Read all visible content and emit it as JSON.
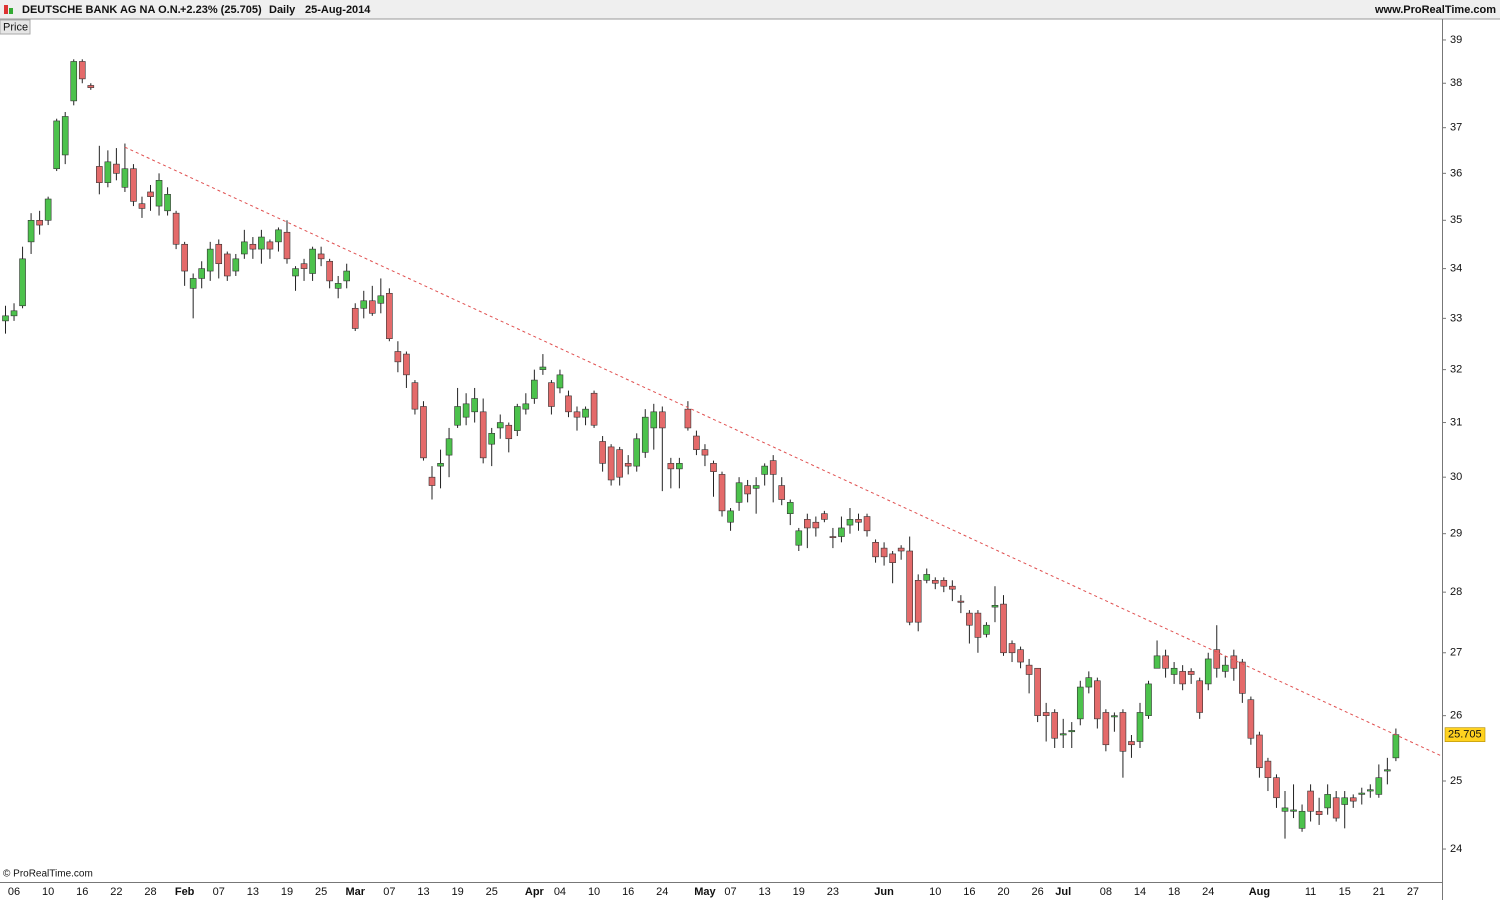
{
  "chart_data": {
    "type": "candlestick",
    "title": "DEUTSCHE BANK AG NA O.N.",
    "change": "+2.23% (25.705)",
    "period": "Daily",
    "date": "25-Aug-2014",
    "source": "www.ProRealTime.com",
    "panel_label": "Price",
    "watermark": "© ProRealTime.com",
    "log_scale": true,
    "grid": false,
    "up_color": "#4cc24c",
    "down_color": "#e46a6a",
    "ylim": [
      23.53,
      39.47
    ],
    "yticks": [
      24,
      25,
      26,
      27,
      28,
      29,
      30,
      31,
      32,
      33,
      34,
      35,
      36,
      37,
      38,
      39
    ],
    "categories": [
      null,
      "06",
      null,
      null,
      null,
      "10",
      null,
      null,
      null,
      "16",
      null,
      null,
      null,
      "22",
      null,
      null,
      null,
      "28",
      null,
      null,
      null,
      "Feb",
      null,
      null,
      null,
      "07",
      null,
      null,
      null,
      "13",
      null,
      null,
      null,
      "19",
      null,
      null,
      null,
      "25",
      null,
      null,
      null,
      "Mar",
      null,
      null,
      null,
      "07",
      null,
      null,
      null,
      "13",
      null,
      null,
      null,
      "19",
      null,
      null,
      null,
      "25",
      null,
      null,
      null,
      null,
      "Apr",
      null,
      null,
      "04",
      null,
      null,
      null,
      "10",
      null,
      null,
      null,
      "16",
      null,
      null,
      null,
      "24",
      null,
      null,
      null,
      null,
      "May",
      null,
      null,
      "07",
      null,
      null,
      null,
      "13",
      null,
      null,
      null,
      "19",
      null,
      null,
      null,
      "23",
      null,
      null,
      null,
      null,
      null,
      "Jun",
      null,
      null,
      null,
      null,
      null,
      "10",
      null,
      null,
      null,
      "16",
      null,
      null,
      null,
      "20",
      null,
      null,
      null,
      "26",
      null,
      null,
      "Jul",
      null,
      null,
      null,
      null,
      "08",
      null,
      null,
      null,
      "14",
      null,
      null,
      null,
      "18",
      null,
      null,
      null,
      "24",
      null,
      null,
      null,
      null,
      null,
      "Aug",
      null,
      null,
      null,
      null,
      null,
      "11",
      null,
      null,
      null,
      "15",
      null,
      null,
      null,
      "21",
      null,
      null,
      null,
      "27"
    ],
    "open": [
      32.95,
      33.05,
      33.25,
      34.55,
      35.0,
      35.0,
      36.1,
      36.4,
      37.6,
      38.5,
      37.95,
      36.15,
      35.8,
      36.2,
      35.7,
      36.1,
      35.35,
      35.6,
      35.3,
      35.2,
      35.15,
      34.5,
      33.6,
      33.8,
      33.95,
      34.5,
      34.3,
      33.95,
      34.3,
      34.5,
      34.4,
      34.55,
      34.55,
      34.75,
      33.85,
      34.1,
      33.9,
      34.3,
      34.15,
      33.6,
      33.75,
      33.2,
      33.2,
      33.35,
      33.3,
      33.5,
      32.35,
      32.3,
      31.75,
      31.3,
      30.0,
      30.2,
      30.4,
      30.95,
      31.1,
      31.2,
      31.2,
      30.6,
      30.9,
      30.95,
      30.85,
      31.25,
      31.45,
      32.0,
      31.75,
      31.65,
      31.5,
      31.2,
      31.1,
      31.55,
      30.65,
      30.55,
      30.5,
      30.25,
      30.2,
      30.45,
      30.9,
      31.2,
      30.25,
      30.15,
      31.25,
      30.75,
      30.5,
      30.25,
      30.05,
      29.2,
      29.55,
      29.85,
      29.8,
      30.05,
      30.3,
      29.85,
      29.35,
      28.8,
      29.25,
      29.2,
      29.35,
      28.95,
      28.95,
      29.15,
      29.25,
      29.3,
      28.85,
      28.75,
      28.65,
      28.75,
      28.7,
      28.2,
      28.2,
      28.2,
      28.2,
      28.1,
      27.85,
      27.65,
      27.65,
      27.3,
      27.75,
      27.8,
      27.15,
      27.05,
      26.8,
      26.75,
      26.05,
      26.05,
      25.7,
      25.75,
      25.95,
      26.45,
      26.55,
      26.05,
      25.98,
      26.05,
      25.6,
      25.6,
      26.0,
      26.75,
      26.95,
      26.65,
      26.7,
      26.7,
      26.55,
      26.5,
      27.05,
      26.7,
      26.95,
      26.85,
      26.25,
      25.7,
      25.3,
      25.05,
      24.55,
      24.55,
      24.3,
      24.85,
      24.55,
      24.6,
      24.75,
      24.65,
      24.75,
      24.8,
      24.85,
      24.8,
      25.15,
      25.35,
      null,
      null
    ],
    "high": [
      33.25,
      33.3,
      34.45,
      35.15,
      35.2,
      35.5,
      37.2,
      37.35,
      38.55,
      38.55,
      38.0,
      36.6,
      36.5,
      36.55,
      36.65,
      36.2,
      35.5,
      35.75,
      36.0,
      35.7,
      35.2,
      34.55,
      33.9,
      34.15,
      34.55,
      34.6,
      34.35,
      34.3,
      34.8,
      34.65,
      34.8,
      34.6,
      34.85,
      35.0,
      34.05,
      34.2,
      34.45,
      34.45,
      34.2,
      33.85,
      34.1,
      33.3,
      33.55,
      33.65,
      33.8,
      33.6,
      32.55,
      32.35,
      31.8,
      31.4,
      30.2,
      30.5,
      30.9,
      31.65,
      31.55,
      31.65,
      31.45,
      30.9,
      31.15,
      31.0,
      31.35,
      31.55,
      32.0,
      32.3,
      31.8,
      32.0,
      31.6,
      31.3,
      31.3,
      31.6,
      30.75,
      30.6,
      30.55,
      30.4,
      30.8,
      31.25,
      31.35,
      31.3,
      30.35,
      30.35,
      31.4,
      30.85,
      30.6,
      30.3,
      30.1,
      29.45,
      30.0,
      29.95,
      30.0,
      30.25,
      30.4,
      30.0,
      29.6,
      29.1,
      29.35,
      29.3,
      29.4,
      29.1,
      29.3,
      29.45,
      29.35,
      29.35,
      28.9,
      28.85,
      28.7,
      28.8,
      28.95,
      28.3,
      28.4,
      28.25,
      28.25,
      28.2,
      27.95,
      27.7,
      27.7,
      27.5,
      28.1,
      27.95,
      27.2,
      27.1,
      26.9,
      26.75,
      26.2,
      26.1,
      25.95,
      25.9,
      26.55,
      26.7,
      26.6,
      26.1,
      26.05,
      26.1,
      25.7,
      26.2,
      26.55,
      27.2,
      27.05,
      26.85,
      26.8,
      26.75,
      26.6,
      27.0,
      27.45,
      26.95,
      27.05,
      26.9,
      26.3,
      25.75,
      25.35,
      25.1,
      24.85,
      24.95,
      24.65,
      24.95,
      24.75,
      24.95,
      24.85,
      24.85,
      24.8,
      24.9,
      24.95,
      25.25,
      25.35,
      25.8,
      null,
      null
    ],
    "low": [
      32.7,
      32.95,
      33.2,
      34.3,
      34.7,
      34.9,
      36.05,
      36.2,
      37.5,
      38.0,
      37.85,
      35.55,
      35.7,
      35.85,
      35.6,
      35.3,
      35.05,
      35.2,
      35.1,
      35.1,
      34.4,
      33.65,
      33.0,
      33.6,
      33.75,
      33.8,
      33.75,
      33.85,
      34.2,
      34.2,
      34.1,
      34.2,
      34.35,
      34.1,
      33.55,
      33.75,
      33.75,
      34.05,
      33.6,
      33.4,
      33.6,
      32.75,
      33.0,
      33.05,
      33.1,
      32.55,
      31.95,
      31.65,
      31.15,
      30.3,
      29.6,
      29.8,
      30.0,
      30.9,
      30.95,
      31.0,
      30.25,
      30.2,
      30.7,
      30.45,
      30.75,
      31.15,
      31.35,
      31.9,
      31.15,
      31.55,
      31.1,
      30.85,
      30.95,
      30.9,
      30.1,
      29.85,
      29.85,
      30.05,
      30.1,
      30.35,
      30.5,
      29.75,
      29.8,
      29.8,
      30.85,
      30.4,
      30.2,
      29.65,
      29.3,
      29.05,
      29.4,
      29.55,
      29.35,
      29.85,
      29.55,
      29.5,
      29.15,
      28.7,
      28.75,
      28.95,
      29.2,
      28.75,
      28.85,
      29.0,
      29.05,
      28.95,
      28.5,
      28.45,
      28.15,
      28.55,
      27.45,
      27.35,
      28.15,
      28.05,
      28.0,
      27.85,
      27.65,
      27.15,
      27.0,
      27.25,
      27.5,
      26.95,
      26.85,
      26.75,
      26.35,
      25.9,
      25.6,
      25.5,
      25.5,
      25.5,
      25.85,
      26.35,
      25.8,
      25.45,
      25.75,
      25.05,
      25.35,
      25.5,
      25.95,
      26.75,
      26.6,
      26.5,
      26.4,
      26.5,
      25.95,
      26.4,
      26.6,
      26.6,
      26.55,
      26.2,
      25.55,
      25.05,
      24.85,
      24.6,
      24.15,
      24.45,
      24.25,
      24.4,
      24.35,
      24.5,
      24.4,
      24.3,
      24.6,
      24.65,
      24.75,
      24.75,
      24.95,
      25.3,
      null,
      null
    ],
    "close": [
      33.05,
      33.15,
      34.2,
      35.0,
      34.9,
      35.45,
      37.15,
      37.25,
      38.5,
      38.1,
      37.9,
      35.8,
      36.25,
      36.0,
      36.1,
      35.4,
      35.25,
      35.5,
      35.85,
      35.55,
      34.5,
      33.95,
      33.8,
      34.0,
      34.4,
      34.1,
      33.85,
      34.2,
      34.55,
      34.4,
      34.65,
      34.4,
      34.8,
      34.2,
      34.0,
      34.0,
      34.4,
      34.2,
      33.75,
      33.7,
      33.95,
      32.8,
      33.35,
      33.1,
      33.45,
      32.6,
      32.15,
      31.9,
      31.25,
      30.35,
      29.85,
      30.25,
      30.7,
      31.3,
      31.35,
      31.45,
      30.35,
      30.8,
      31.0,
      30.7,
      31.3,
      31.35,
      31.8,
      32.05,
      31.3,
      31.9,
      31.2,
      31.1,
      31.25,
      30.95,
      30.25,
      29.95,
      30.0,
      30.2,
      30.7,
      31.1,
      31.2,
      30.9,
      30.15,
      30.25,
      30.9,
      30.5,
      30.4,
      30.1,
      29.4,
      29.4,
      29.9,
      29.7,
      29.85,
      30.2,
      30.05,
      29.6,
      29.55,
      29.05,
      29.1,
      29.1,
      29.25,
      28.93,
      29.1,
      29.25,
      29.2,
      29.05,
      28.6,
      28.6,
      28.5,
      28.7,
      27.5,
      27.5,
      28.3,
      28.15,
      28.1,
      28.05,
      27.83,
      27.45,
      27.25,
      27.45,
      27.78,
      27.0,
      27.0,
      26.85,
      26.65,
      26.0,
      26.0,
      25.65,
      25.72,
      25.77,
      26.45,
      26.6,
      25.95,
      25.55,
      26.0,
      25.45,
      25.55,
      26.05,
      26.5,
      26.95,
      26.75,
      26.75,
      26.5,
      26.65,
      26.05,
      26.9,
      26.75,
      26.8,
      26.75,
      26.35,
      25.65,
      25.2,
      25.05,
      24.75,
      24.6,
      24.57,
      24.55,
      24.55,
      24.5,
      24.8,
      24.45,
      24.75,
      24.7,
      24.82,
      24.87,
      25.05,
      25.17,
      25.705,
      null,
      null
    ],
    "trendline": {
      "x": [
        14,
        165
      ],
      "values": [
        36.57,
        25.58
      ],
      "color": "#e05050"
    }
  }
}
